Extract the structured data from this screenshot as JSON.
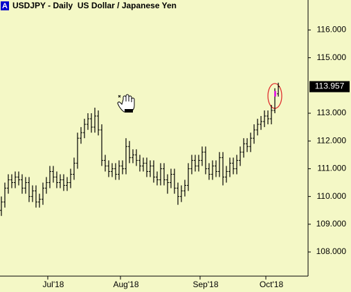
{
  "chart_data": {
    "type": "ohlc",
    "badge": "A",
    "title": "USDJPY - Daily  US Dollar / Japanese Yen",
    "categories": [
      null,
      null,
      null,
      null,
      null,
      null,
      null,
      null,
      null,
      null,
      null,
      null,
      null,
      null,
      null,
      "Jul'18",
      null,
      null,
      null,
      null,
      null,
      null,
      null,
      null,
      null,
      null,
      null,
      null,
      null,
      null,
      null,
      null,
      null,
      null,
      null,
      null,
      "Aug'18",
      null,
      null,
      null,
      null,
      null,
      null,
      null,
      null,
      null,
      null,
      null,
      null,
      null,
      null,
      null,
      null,
      null,
      null,
      null,
      null,
      null,
      null,
      "Sep'18",
      null,
      null,
      null,
      null,
      null,
      null,
      null,
      null,
      null,
      null,
      null,
      null,
      null,
      null,
      null,
      null,
      null,
      null,
      "Oct'18",
      null,
      null
    ],
    "open": [
      109.5,
      109.8,
      110.3,
      110.6,
      110.5,
      110.7,
      110.6,
      110.3,
      110.5,
      110.0,
      110.2,
      109.8,
      109.9,
      110.3,
      110.5,
      110.9,
      110.7,
      110.5,
      110.6,
      110.4,
      110.5,
      110.8,
      111.2,
      112.1,
      112.3,
      112.6,
      112.8,
      112.5,
      112.9,
      112.4,
      111.3,
      111.1,
      110.9,
      111.0,
      110.8,
      111.1,
      111.0,
      111.8,
      111.4,
      111.5,
      111.3,
      111.1,
      111.2,
      110.9,
      111.1,
      110.7,
      110.6,
      111.0,
      110.6,
      110.5,
      110.8,
      110.3,
      110.0,
      110.2,
      110.4,
      111.0,
      111.3,
      111.1,
      111.3,
      111.6,
      111.0,
      110.8,
      111.1,
      110.9,
      111.4,
      110.7,
      110.9,
      111.2,
      111.0,
      111.3,
      111.6,
      111.9,
      111.8,
      112.1,
      112.4,
      112.6,
      112.7,
      112.9,
      112.8,
      113.1,
      113.7
    ],
    "high": [
      110.0,
      110.5,
      110.8,
      110.8,
      110.9,
      110.9,
      110.8,
      110.7,
      110.7,
      110.4,
      110.4,
      110.1,
      110.5,
      110.7,
      111.1,
      111.1,
      110.9,
      110.8,
      110.8,
      110.7,
      111.0,
      111.4,
      112.3,
      112.5,
      112.8,
      113.0,
      113.0,
      113.2,
      113.1,
      112.6,
      111.5,
      111.3,
      111.2,
      111.2,
      111.3,
      111.3,
      112.1,
      112.0,
      111.7,
      111.7,
      111.5,
      111.4,
      111.4,
      111.3,
      111.3,
      110.9,
      111.2,
      111.2,
      110.8,
      111.0,
      111.0,
      110.5,
      110.4,
      110.6,
      111.2,
      111.5,
      111.5,
      111.5,
      111.8,
      111.8,
      111.2,
      111.3,
      111.3,
      111.6,
      111.6,
      111.1,
      111.4,
      111.4,
      111.5,
      111.8,
      112.1,
      112.1,
      112.3,
      112.6,
      112.8,
      112.9,
      113.1,
      113.1,
      113.3,
      113.9,
      114.1
    ],
    "low": [
      109.3,
      109.6,
      110.1,
      110.3,
      110.3,
      110.4,
      110.1,
      110.1,
      109.8,
      109.8,
      109.6,
      109.6,
      109.7,
      110.1,
      110.3,
      110.5,
      110.3,
      110.3,
      110.2,
      110.2,
      110.3,
      110.6,
      111.0,
      111.9,
      112.1,
      112.4,
      112.3,
      112.3,
      112.2,
      111.1,
      110.9,
      110.7,
      110.7,
      110.6,
      110.6,
      110.8,
      110.8,
      111.2,
      111.2,
      111.1,
      110.9,
      110.9,
      110.7,
      110.7,
      110.5,
      110.4,
      110.4,
      110.4,
      110.1,
      110.3,
      110.1,
      109.7,
      109.8,
      110.0,
      110.2,
      110.8,
      110.9,
      110.9,
      111.1,
      110.8,
      110.6,
      110.6,
      110.7,
      110.7,
      110.4,
      110.5,
      110.7,
      110.8,
      110.8,
      111.1,
      111.4,
      111.6,
      111.6,
      111.9,
      112.2,
      112.4,
      112.5,
      112.6,
      112.6,
      113.0,
      113.6
    ],
    "close": [
      109.8,
      110.3,
      110.6,
      110.5,
      110.7,
      110.6,
      110.3,
      110.5,
      110.0,
      110.2,
      109.8,
      109.9,
      110.3,
      110.5,
      110.9,
      110.7,
      110.5,
      110.6,
      110.4,
      110.5,
      110.8,
      111.2,
      112.1,
      112.3,
      112.6,
      112.8,
      112.5,
      112.9,
      112.4,
      111.3,
      111.1,
      110.9,
      111.0,
      110.8,
      111.1,
      111.0,
      111.8,
      111.4,
      111.5,
      111.3,
      111.1,
      111.2,
      110.9,
      111.1,
      110.7,
      110.6,
      111.0,
      110.6,
      110.5,
      110.8,
      110.3,
      110.0,
      110.2,
      110.4,
      111.0,
      111.3,
      111.1,
      111.3,
      111.6,
      111.0,
      110.8,
      111.1,
      110.9,
      111.4,
      110.7,
      110.9,
      111.2,
      111.0,
      111.3,
      111.6,
      111.9,
      111.8,
      112.1,
      112.4,
      112.6,
      112.7,
      112.9,
      112.8,
      113.1,
      113.7,
      113.957
    ],
    "color": "#000000",
    "ylim": [
      107.13,
      117.08
    ],
    "yticks": [
      {
        "value": 108,
        "label": "108.000"
      },
      {
        "value": 109,
        "label": "109.000"
      },
      {
        "value": 110,
        "label": "110.000"
      },
      {
        "value": 111,
        "label": "111.000"
      },
      {
        "value": 112,
        "label": "112.000"
      },
      {
        "value": 113,
        "label": "113.000"
      },
      {
        "value": 115,
        "label": "115.000"
      },
      {
        "value": 116,
        "label": "116.000"
      }
    ]
  }
}
